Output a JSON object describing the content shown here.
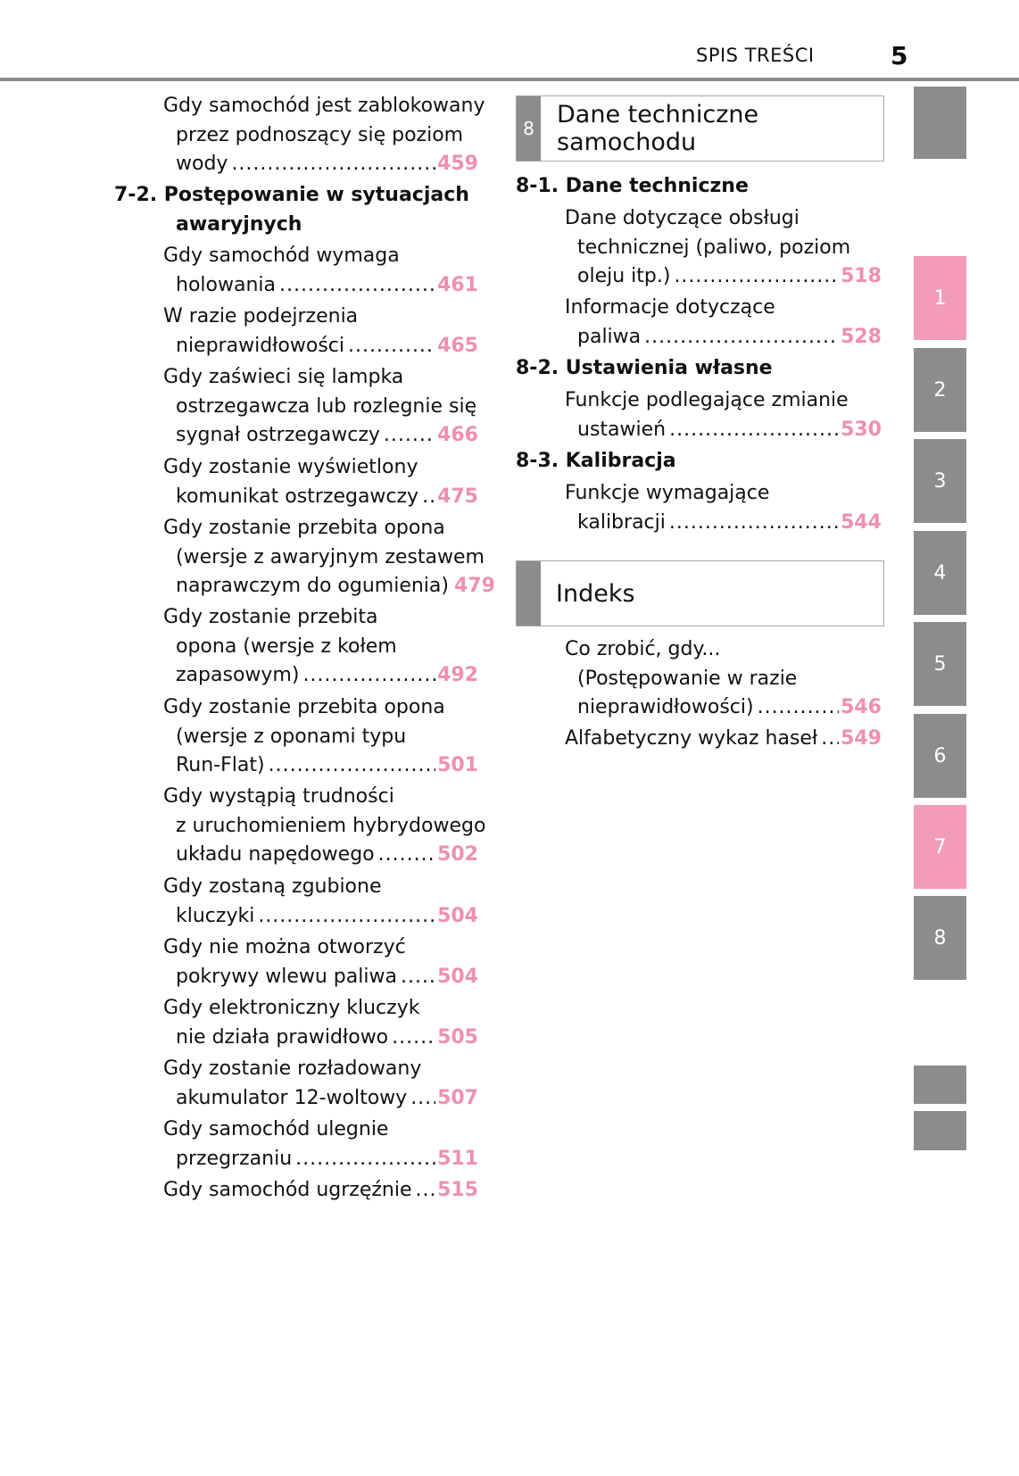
{
  "header": {
    "title": "SPIS TREŚCI",
    "page_number": "5"
  },
  "colors": {
    "accent_pink": "#ef8fb1",
    "tab_gray": "#8c8c8c",
    "tab_pink": "#f39bbb"
  },
  "left_column": [
    {
      "type": "entry",
      "lines": [
        "Gdy samochód jest zablokowany",
        "przez podnoszący się poziom",
        "wody"
      ],
      "page": "459"
    },
    {
      "type": "heading",
      "lines": [
        "7-2. Postępowanie w sytuacjach",
        "awaryjnych"
      ]
    },
    {
      "type": "entry",
      "lines": [
        "Gdy samochód wymaga",
        "holowania"
      ],
      "page": "461"
    },
    {
      "type": "entry",
      "lines": [
        "W razie podejrzenia",
        "nieprawidłowości"
      ],
      "page": "465"
    },
    {
      "type": "entry",
      "lines": [
        "Gdy zaświeci się lampka",
        "ostrzegawcza lub rozlegnie się",
        "sygnał ostrzegawczy"
      ],
      "page": "466"
    },
    {
      "type": "entry",
      "lines": [
        "Gdy zostanie wyświetlony",
        "komunikat ostrzegawczy"
      ],
      "page": "475"
    },
    {
      "type": "entry",
      "lines": [
        "Gdy zostanie przebita opona",
        "(wersje z awaryjnym zestawem",
        "naprawczym do ogumienia)"
      ],
      "page": "479"
    },
    {
      "type": "entry",
      "lines": [
        "Gdy zostanie przebita",
        "opona (wersje z kołem",
        "zapasowym)"
      ],
      "page": "492"
    },
    {
      "type": "entry",
      "lines": [
        "Gdy zostanie przebita opona",
        "(wersje z oponami typu",
        "Run-Flat)"
      ],
      "page": "501"
    },
    {
      "type": "entry",
      "lines": [
        "Gdy wystąpią trudności",
        "z uruchomieniem hybrydowego",
        "układu napędowego"
      ],
      "page": "502"
    },
    {
      "type": "entry",
      "lines": [
        "Gdy zostaną zgubione",
        "kluczyki"
      ],
      "page": "504"
    },
    {
      "type": "entry",
      "lines": [
        "Gdy nie można otworzyć",
        "pokrywy wlewu paliwa"
      ],
      "page": "504"
    },
    {
      "type": "entry",
      "lines": [
        "Gdy elektroniczny kluczyk",
        "nie działa prawidłowo"
      ],
      "page": "505"
    },
    {
      "type": "entry",
      "lines": [
        "Gdy zostanie rozładowany",
        "akumulator 12-woltowy"
      ],
      "page": "507"
    },
    {
      "type": "entry",
      "lines": [
        "Gdy samochód ulegnie",
        "przegrzaniu"
      ],
      "page": "511"
    },
    {
      "type": "entry",
      "lines": [
        "Gdy samochód ugrzęźnie"
      ],
      "page": "515"
    }
  ],
  "section_8": {
    "number": "8",
    "title": "Dane techniczne samochodu"
  },
  "section_index": {
    "title": "Indeks"
  },
  "right_column": [
    {
      "type": "heading",
      "lines": [
        "8-1. Dane techniczne"
      ]
    },
    {
      "type": "entry",
      "lines": [
        "Dane dotyczące obsługi",
        "technicznej (paliwo, poziom",
        "oleju itp.)"
      ],
      "page": "518"
    },
    {
      "type": "entry",
      "lines": [
        "Informacje dotyczące",
        "paliwa"
      ],
      "page": "528"
    },
    {
      "type": "heading",
      "lines": [
        "8-2. Ustawienia własne"
      ]
    },
    {
      "type": "entry",
      "lines": [
        "Funkcje podlegające zmianie",
        "ustawień"
      ],
      "page": "530"
    },
    {
      "type": "heading",
      "lines": [
        "8-3. Kalibracja"
      ]
    },
    {
      "type": "entry",
      "lines": [
        "Funkcje wymagające",
        "kalibracji"
      ],
      "page": "544"
    },
    {
      "type": "entry",
      "lines": [
        "Co zrobić, gdy...",
        "(Postępowanie w razie",
        "nieprawidłowości)"
      ],
      "page": "546"
    },
    {
      "type": "entry",
      "lines": [
        "Alfabetyczny wykaz haseł"
      ],
      "page": "549"
    }
  ],
  "side_tabs": [
    {
      "label": "",
      "active": false
    },
    {
      "label": "1",
      "active": true
    },
    {
      "label": "2",
      "active": false
    },
    {
      "label": "3",
      "active": false
    },
    {
      "label": "4",
      "active": false
    },
    {
      "label": "5",
      "active": false
    },
    {
      "label": "6",
      "active": false
    },
    {
      "label": "7",
      "active": true
    },
    {
      "label": "8",
      "active": false
    },
    {
      "label": "",
      "active": false
    },
    {
      "label": "",
      "active": false
    }
  ]
}
